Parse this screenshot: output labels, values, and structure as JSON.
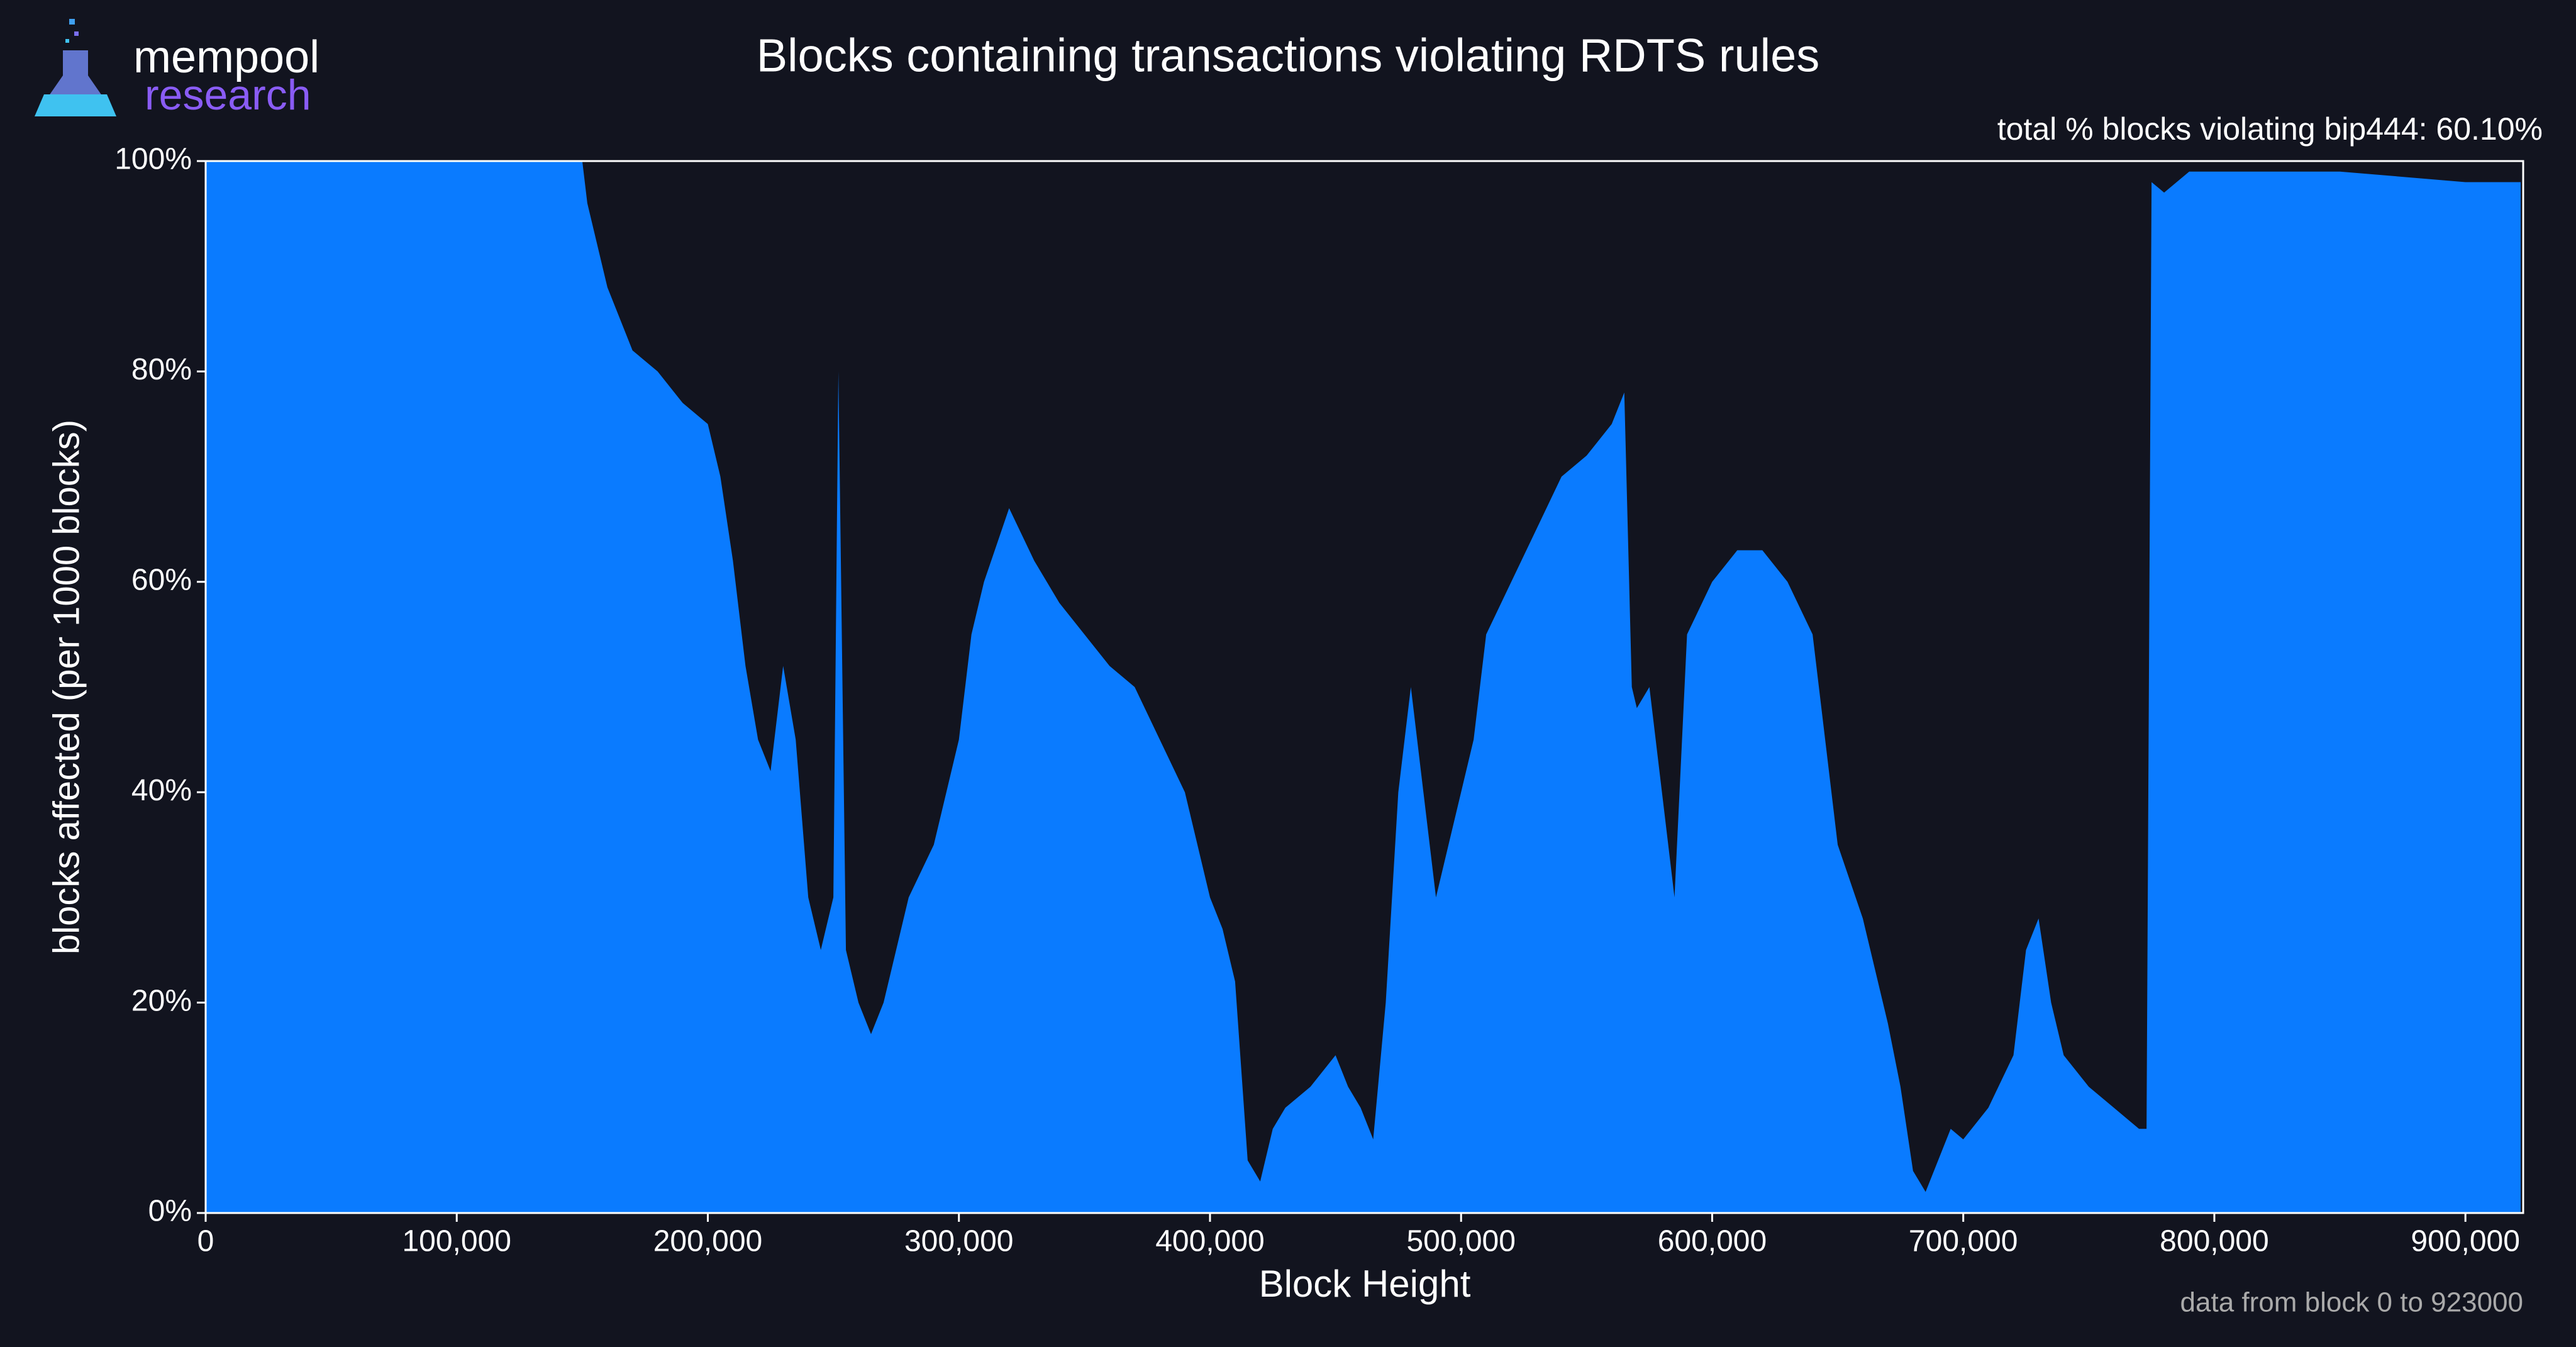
{
  "brand": {
    "name": "mempool",
    "sub": "research"
  },
  "chart_data": {
    "type": "area",
    "title": "Blocks containing transactions violating RDTS rules",
    "annotation": "total % blocks violating bip444: 60.10%",
    "note": "data from block 0 to 923000",
    "x_label": "Block Height",
    "y_label": "blocks affected (per 1000 blocks)",
    "color": "#0a7bff",
    "x": [
      0,
      50000,
      100000,
      150000,
      152000,
      155000,
      160000,
      170000,
      180000,
      190000,
      200000,
      205000,
      210000,
      215000,
      220000,
      225000,
      230000,
      235000,
      240000,
      245000,
      250000,
      252000,
      255000,
      260000,
      265000,
      270000,
      275000,
      280000,
      290000,
      300000,
      305000,
      310000,
      320000,
      330000,
      340000,
      350000,
      360000,
      370000,
      380000,
      390000,
      400000,
      405000,
      410000,
      415000,
      420000,
      425000,
      430000,
      440000,
      450000,
      455000,
      460000,
      465000,
      470000,
      475000,
      480000,
      485000,
      490000,
      495000,
      500000,
      505000,
      510000,
      520000,
      530000,
      540000,
      550000,
      560000,
      565000,
      568000,
      570000,
      575000,
      580000,
      585000,
      590000,
      600000,
      610000,
      620000,
      630000,
      640000,
      645000,
      650000,
      660000,
      670000,
      675000,
      680000,
      685000,
      690000,
      695000,
      700000,
      710000,
      720000,
      725000,
      730000,
      735000,
      740000,
      750000,
      760000,
      770000,
      773000,
      775000,
      780000,
      790000,
      800000,
      850000,
      900000,
      922000
    ],
    "values": [
      100,
      100,
      100,
      100,
      96,
      93,
      88,
      82,
      80,
      77,
      75,
      70,
      62,
      52,
      45,
      42,
      52,
      45,
      30,
      25,
      30,
      80,
      25,
      20,
      17,
      20,
      25,
      30,
      35,
      45,
      55,
      60,
      67,
      62,
      58,
      55,
      52,
      50,
      45,
      40,
      30,
      27,
      22,
      5,
      3,
      8,
      10,
      12,
      15,
      12,
      10,
      7,
      20,
      40,
      50,
      40,
      30,
      35,
      40,
      45,
      55,
      60,
      65,
      70,
      72,
      75,
      78,
      50,
      48,
      50,
      40,
      30,
      55,
      60,
      63,
      63,
      60,
      55,
      45,
      35,
      28,
      18,
      12,
      4,
      2,
      5,
      8,
      7,
      10,
      15,
      25,
      28,
      20,
      15,
      12,
      10,
      8,
      8,
      98,
      97,
      99,
      99,
      99,
      98,
      98
    ],
    "xlim": [
      0,
      923000
    ],
    "ylim": [
      0,
      100
    ],
    "xticks": [
      {
        "value": 0,
        "label": "0"
      },
      {
        "value": 100000,
        "label": "100,000"
      },
      {
        "value": 200000,
        "label": "200,000"
      },
      {
        "value": 300000,
        "label": "300,000"
      },
      {
        "value": 400000,
        "label": "400,000"
      },
      {
        "value": 500000,
        "label": "500,000"
      },
      {
        "value": 600000,
        "label": "600,000"
      },
      {
        "value": 700000,
        "label": "700,000"
      },
      {
        "value": 800000,
        "label": "800,000"
      },
      {
        "value": 900000,
        "label": "900,000"
      }
    ],
    "yticks": [
      {
        "value": 0,
        "label": "0%"
      },
      {
        "value": 20,
        "label": "20%"
      },
      {
        "value": 40,
        "label": "40%"
      },
      {
        "value": 60,
        "label": "60%"
      },
      {
        "value": 80,
        "label": "80%"
      },
      {
        "value": 100,
        "label": "100%"
      }
    ]
  }
}
